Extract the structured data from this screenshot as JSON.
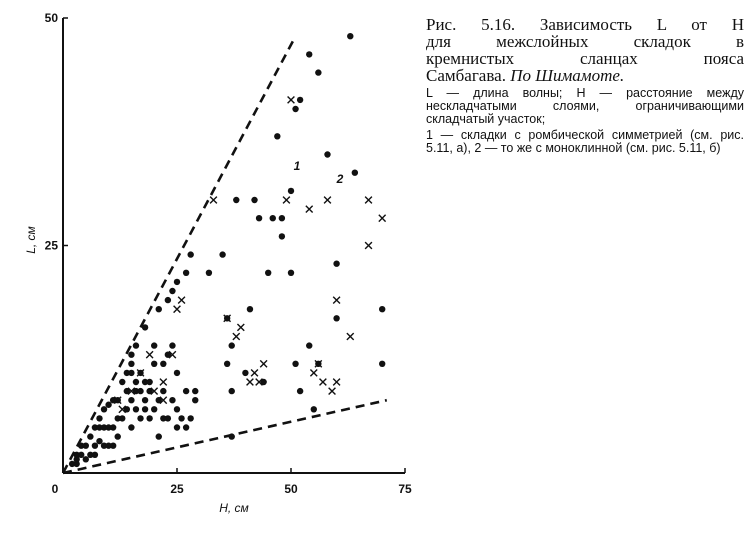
{
  "caption": {
    "title_line1": "Рис. 5.16. Зависимость L от H",
    "title_line2": "для межслойных складок в",
    "title_line3": "кремнистых сланцах пояса",
    "title_line4_plain": "Самбагава. ",
    "title_line4_italic": "По Шимамоте.",
    "legend_definition": "L — длина волны; H — расстояние между нескладчатыми слоями, ограничивающими складчатый участок;",
    "legend_series": "1 — складки с ромбической симметрией (см. рис. 5.11, а), 2 — то же с моноклинной (см. рис. 5.11, б)"
  },
  "chart_data": {
    "type": "scatter",
    "xlabel": "H, см",
    "ylabel": "L, см",
    "xlim": [
      0,
      75
    ],
    "ylim": [
      0,
      50
    ],
    "x_ticks": [
      "0",
      "25",
      "50",
      "75"
    ],
    "y_ticks": [
      "0",
      "25",
      "50"
    ],
    "series": [
      {
        "name": "1",
        "marker": "dot",
        "points": [
          [
            2,
            1
          ],
          [
            3,
            1
          ],
          [
            3,
            1.5
          ],
          [
            3,
            2
          ],
          [
            4,
            2
          ],
          [
            4,
            3
          ],
          [
            5,
            1.5
          ],
          [
            5,
            3
          ],
          [
            6,
            2
          ],
          [
            6,
            4
          ],
          [
            7,
            2
          ],
          [
            7,
            3
          ],
          [
            7,
            5
          ],
          [
            8,
            3.5
          ],
          [
            8,
            5
          ],
          [
            8,
            6
          ],
          [
            9,
            3
          ],
          [
            9,
            5
          ],
          [
            9,
            7
          ],
          [
            10,
            3
          ],
          [
            10,
            5
          ],
          [
            10,
            7.5
          ],
          [
            11,
            3
          ],
          [
            11,
            5
          ],
          [
            11,
            8
          ],
          [
            12,
            4
          ],
          [
            12,
            6
          ],
          [
            12,
            8
          ],
          [
            13,
            6
          ],
          [
            13,
            10
          ],
          [
            14,
            7
          ],
          [
            14,
            9
          ],
          [
            14,
            11
          ],
          [
            15,
            5
          ],
          [
            15,
            8
          ],
          [
            15,
            11
          ],
          [
            15,
            12
          ],
          [
            15,
            13
          ],
          [
            16,
            7
          ],
          [
            16,
            9
          ],
          [
            16,
            10
          ],
          [
            16,
            14
          ],
          [
            17,
            6
          ],
          [
            17,
            9
          ],
          [
            17,
            11
          ],
          [
            18,
            7
          ],
          [
            18,
            8
          ],
          [
            18,
            10
          ],
          [
            18,
            16
          ],
          [
            19,
            6
          ],
          [
            19,
            9
          ],
          [
            19,
            10
          ],
          [
            20,
            7
          ],
          [
            20,
            12
          ],
          [
            20,
            14
          ],
          [
            21,
            4
          ],
          [
            21,
            8
          ],
          [
            21,
            18
          ],
          [
            22,
            6
          ],
          [
            22,
            9
          ],
          [
            22,
            12
          ],
          [
            23,
            6
          ],
          [
            23,
            13
          ],
          [
            23,
            19
          ],
          [
            24,
            8
          ],
          [
            24,
            20
          ],
          [
            24,
            14
          ],
          [
            25,
            5
          ],
          [
            25,
            7
          ],
          [
            25,
            11
          ],
          [
            25,
            21
          ],
          [
            26,
            6
          ],
          [
            27,
            5
          ],
          [
            27,
            9
          ],
          [
            27,
            22
          ],
          [
            28,
            6
          ],
          [
            28,
            24
          ],
          [
            29,
            8
          ],
          [
            29,
            9
          ],
          [
            32,
            22
          ],
          [
            35,
            24
          ],
          [
            36,
            12
          ],
          [
            36,
            17
          ],
          [
            37,
            4
          ],
          [
            37,
            9
          ],
          [
            37,
            14
          ],
          [
            38,
            30
          ],
          [
            40,
            11
          ],
          [
            41,
            18
          ],
          [
            42,
            30
          ],
          [
            43,
            28
          ],
          [
            44,
            10
          ],
          [
            45,
            22
          ],
          [
            46,
            28
          ],
          [
            47,
            37
          ],
          [
            48,
            26
          ],
          [
            48,
            28
          ],
          [
            50,
            22
          ],
          [
            50,
            31
          ],
          [
            51,
            12
          ],
          [
            51,
            40
          ],
          [
            52,
            9
          ],
          [
            52,
            41
          ],
          [
            54,
            14
          ],
          [
            54,
            46
          ],
          [
            56,
            12
          ],
          [
            56,
            44
          ],
          [
            58,
            35
          ],
          [
            60,
            23
          ],
          [
            60,
            17
          ],
          [
            64,
            33
          ],
          [
            70,
            12
          ],
          [
            70,
            18
          ],
          [
            63,
            48
          ],
          [
            55,
            7
          ]
        ]
      },
      {
        "name": "2",
        "marker": "cross",
        "points": [
          [
            12,
            8
          ],
          [
            13,
            7
          ],
          [
            15,
            9
          ],
          [
            17,
            11
          ],
          [
            19,
            13
          ],
          [
            20,
            9
          ],
          [
            22,
            8
          ],
          [
            22,
            10
          ],
          [
            24,
            13
          ],
          [
            25,
            18
          ],
          [
            26,
            19
          ],
          [
            33,
            30
          ],
          [
            36,
            17
          ],
          [
            38,
            15
          ],
          [
            39,
            16
          ],
          [
            41,
            10
          ],
          [
            42,
            11
          ],
          [
            43,
            10
          ],
          [
            44,
            12
          ],
          [
            49,
            30
          ],
          [
            50,
            41
          ],
          [
            54,
            29
          ],
          [
            55,
            11
          ],
          [
            56,
            12
          ],
          [
            57,
            10
          ],
          [
            58,
            30
          ],
          [
            59,
            9
          ],
          [
            60,
            19
          ],
          [
            60,
            10
          ],
          [
            63,
            15
          ],
          [
            67,
            25
          ],
          [
            67,
            30
          ],
          [
            70,
            28
          ]
        ]
      }
    ],
    "reference_lines": [
      {
        "style": "dashed",
        "from": [
          0,
          0
        ],
        "to": [
          51,
          48
        ]
      },
      {
        "style": "dashed",
        "from": [
          0,
          0
        ],
        "to": [
          71,
          8
        ]
      }
    ],
    "annotations": [
      "1",
      "2"
    ],
    "grid": false
  }
}
